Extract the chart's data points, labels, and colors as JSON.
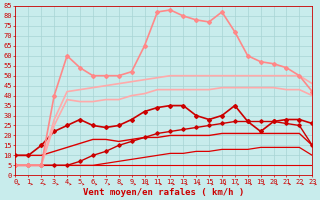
{
  "xlabel": "Vent moyen/en rafales ( km/h )",
  "bg_color": "#c8ecec",
  "grid_color": "#a8d4d4",
  "x": [
    0,
    1,
    2,
    3,
    4,
    5,
    6,
    7,
    8,
    9,
    10,
    11,
    12,
    13,
    14,
    15,
    16,
    17,
    18,
    19,
    20,
    21,
    22,
    23
  ],
  "lines": [
    {
      "y": [
        5,
        5,
        5,
        5,
        5,
        5,
        5,
        5,
        5,
        5,
        5,
        5,
        5,
        5,
        5,
        5,
        5,
        5,
        5,
        5,
        5,
        5,
        5,
        5
      ],
      "color": "#dd0000",
      "lw": 0.8,
      "marker": null,
      "ms": 0
    },
    {
      "y": [
        5,
        5,
        5,
        5,
        5,
        5,
        5,
        6,
        7,
        8,
        9,
        10,
        11,
        11,
        12,
        12,
        13,
        13,
        13,
        14,
        14,
        14,
        14,
        10
      ],
      "color": "#dd0000",
      "lw": 0.9,
      "marker": null,
      "ms": 0
    },
    {
      "y": [
        10,
        10,
        10,
        12,
        14,
        16,
        18,
        18,
        17,
        18,
        19,
        19,
        20,
        20,
        20,
        20,
        21,
        21,
        21,
        21,
        21,
        21,
        21,
        15
      ],
      "color": "#dd0000",
      "lw": 1.0,
      "marker": null,
      "ms": 0
    },
    {
      "y": [
        5,
        5,
        5,
        5,
        5,
        7,
        10,
        12,
        15,
        17,
        19,
        21,
        22,
        23,
        24,
        25,
        26,
        27,
        27,
        27,
        27,
        26,
        25,
        15
      ],
      "color": "#cc0000",
      "lw": 1.0,
      "marker": "D",
      "ms": 1.8
    },
    {
      "y": [
        10,
        10,
        15,
        22,
        25,
        28,
        25,
        24,
        25,
        28,
        32,
        34,
        35,
        35,
        30,
        28,
        30,
        35,
        27,
        22,
        27,
        28,
        28,
        26
      ],
      "color": "#cc0000",
      "lw": 1.2,
      "marker": "D",
      "ms": 2.0
    },
    {
      "y": [
        5,
        5,
        5,
        25,
        38,
        37,
        37,
        38,
        38,
        40,
        41,
        43,
        43,
        43,
        43,
        43,
        44,
        44,
        44,
        44,
        44,
        43,
        43,
        40
      ],
      "color": "#ffaaaa",
      "lw": 1.2,
      "marker": null,
      "ms": 0
    },
    {
      "y": [
        5,
        5,
        5,
        28,
        42,
        43,
        44,
        45,
        46,
        47,
        48,
        49,
        50,
        50,
        50,
        50,
        50,
        50,
        50,
        50,
        50,
        50,
        50,
        46
      ],
      "color": "#ffaaaa",
      "lw": 1.2,
      "marker": null,
      "ms": 0
    },
    {
      "y": [
        5,
        5,
        5,
        40,
        60,
        54,
        50,
        50,
        50,
        52,
        65,
        82,
        83,
        80,
        78,
        77,
        82,
        72,
        60,
        57,
        56,
        54,
        50,
        42
      ],
      "color": "#ff8888",
      "lw": 1.2,
      "marker": "D",
      "ms": 2.0
    }
  ],
  "xlim": [
    0,
    23
  ],
  "ylim": [
    0,
    85
  ],
  "yticks": [
    0,
    5,
    10,
    15,
    20,
    25,
    30,
    35,
    40,
    45,
    50,
    55,
    60,
    65,
    70,
    75,
    80,
    85
  ],
  "xticks": [
    0,
    1,
    2,
    3,
    4,
    5,
    6,
    7,
    8,
    9,
    10,
    11,
    12,
    13,
    14,
    15,
    16,
    17,
    18,
    19,
    20,
    21,
    22,
    23
  ],
  "tick_color": "#cc0000",
  "xlabel_color": "#cc0000",
  "xlabel_fontsize": 6.5,
  "tick_fontsize": 5.0,
  "arrow_color": "#cc0000"
}
